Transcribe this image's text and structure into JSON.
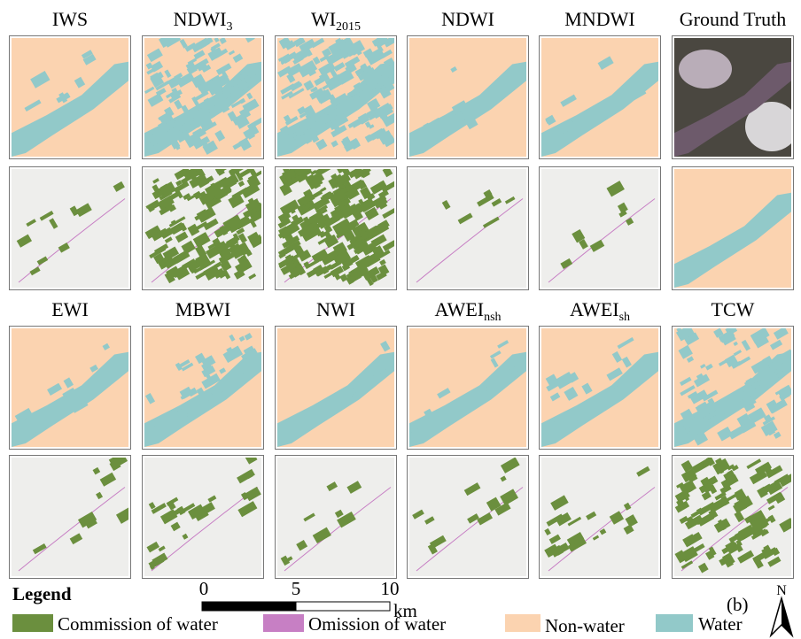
{
  "groups": [
    {
      "titles": [
        {
          "text": "IWS"
        },
        {
          "text": "NDWI",
          "sub": "3"
        },
        {
          "text": "WI",
          "sub": "2015"
        },
        {
          "text": "NDWI"
        },
        {
          "text": "MNDWI"
        },
        {
          "text": "Ground Truth"
        }
      ]
    },
    {
      "titles": [
        {
          "text": "EWI"
        },
        {
          "text": "MBWI"
        },
        {
          "text": "NWI"
        },
        {
          "text": "AWEI",
          "sub": "nsh"
        },
        {
          "text": "AWEI",
          "sub": "sh"
        },
        {
          "text": "TCW"
        }
      ]
    }
  ],
  "legend": {
    "title": "Legend",
    "items": [
      "Commission of water",
      "Omission of water",
      "Non-water",
      "Water"
    ]
  },
  "scale_bar": {
    "ticks": [
      0,
      5,
      10
    ],
    "unit": "km"
  },
  "panel_label": "(b)",
  "north": "N"
}
